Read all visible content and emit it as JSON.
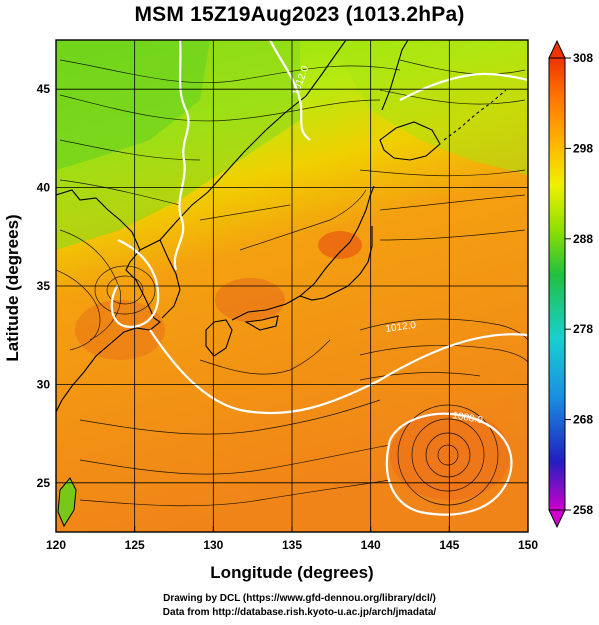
{
  "title": "MSM 15Z19Aug2023 (1013.2hPa)",
  "x_axis": {
    "label": "Longitude (degrees)",
    "ticks": [
      "120",
      "125",
      "130",
      "135",
      "140",
      "145",
      "150"
    ],
    "range": [
      120,
      150
    ]
  },
  "y_axis": {
    "label": "Latitude  (degrees)",
    "ticks": [
      "25",
      "30",
      "35",
      "40",
      "45"
    ],
    "range": [
      22.5,
      47.5
    ]
  },
  "colorbar": {
    "ticks": [
      "308",
      "298",
      "288",
      "278",
      "268",
      "258"
    ],
    "range": [
      258,
      308
    ],
    "colors": [
      "#cc00cc",
      "#2020c0",
      "#1a8fe0",
      "#18d0d0",
      "#20c040",
      "#8ee000",
      "#f0f000",
      "#ffb000",
      "#ff7000",
      "#ee3300"
    ]
  },
  "contours": [
    {
      "label": "1012.0"
    },
    {
      "label": "1012.0"
    },
    {
      "label": "1008.0"
    }
  ],
  "credits": {
    "line1": "Drawing by DCL (https://www.gfd-dennou.org/library/dcl/)",
    "line2": "Data from http://database.rish.kyoto-u.ac.jp/arch/jmadata/"
  }
}
